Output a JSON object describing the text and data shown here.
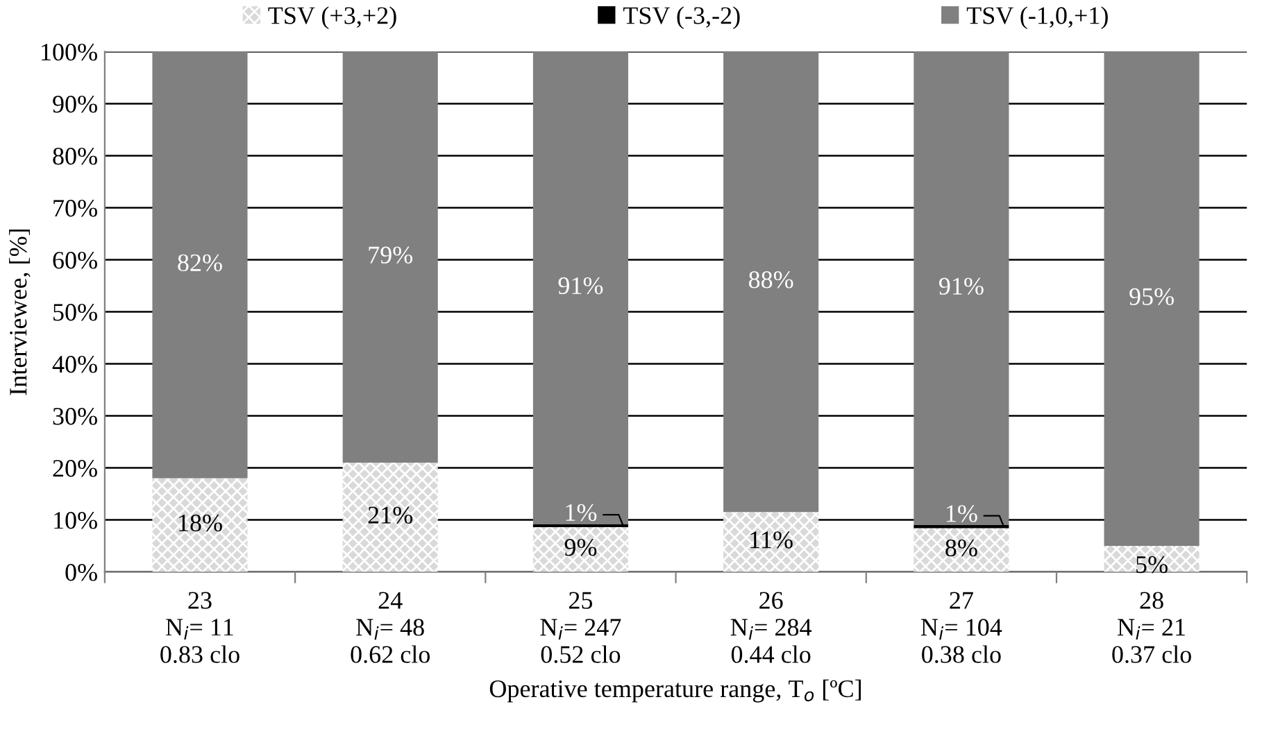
{
  "chart_data": {
    "type": "bar",
    "stacked": true,
    "xlabel": "Operative temperature range, T$_{o}$ [ºC]",
    "ylabel": "Interviewee, [%]",
    "categories": [
      "23\nN$_{i}$= 11\n0.83 clo",
      "24\nN$_{i}$= 48\n0.62 clo",
      "25\nN$_{i}$= 247\n0.52 clo",
      "26\nN$_{i}$= 284\n0.44 clo",
      "27\nN$_{i}$= 104\n0.38 clo",
      "28\nN$_{i}$= 21\n0.37 clo"
    ],
    "series": [
      {
        "name": "TSV (+3,+2)",
        "color": "#d9d9d9",
        "values": [
          18,
          21,
          8.6,
          11.5,
          8.4,
          5
        ],
        "value_labels": [
          "18%",
          "21%",
          "9%",
          "11%",
          "8%",
          "5%"
        ]
      },
      {
        "name": "TSV (-3,-2)",
        "color": "#000000",
        "values": [
          0,
          0,
          0.6,
          0,
          0.6,
          0
        ],
        "value_labels": [
          null,
          null,
          "1%",
          null,
          "1%",
          null
        ]
      },
      {
        "name": "TSV (-1,0,+1)",
        "color": "#808080",
        "values": [
          82,
          79,
          90.8,
          88.5,
          91,
          95
        ],
        "value_labels": [
          "82%",
          "79%",
          "91%",
          "88%",
          "91%",
          "95%"
        ]
      }
    ],
    "ylim": [
      0,
      100
    ],
    "yticks": [
      {
        "value": 0,
        "label": "0%"
      },
      {
        "value": 10,
        "label": "10%"
      },
      {
        "value": 20,
        "label": "20%"
      },
      {
        "value": 30,
        "label": "30%"
      },
      {
        "value": 40,
        "label": "40%"
      },
      {
        "value": 50,
        "label": "50%"
      },
      {
        "value": 60,
        "label": "60%"
      },
      {
        "value": 70,
        "label": "70%"
      },
      {
        "value": 80,
        "label": "80%"
      },
      {
        "value": 90,
        "label": "90%"
      },
      {
        "value": 100,
        "label": "100%"
      }
    ],
    "grid": "y",
    "legend": "top"
  }
}
